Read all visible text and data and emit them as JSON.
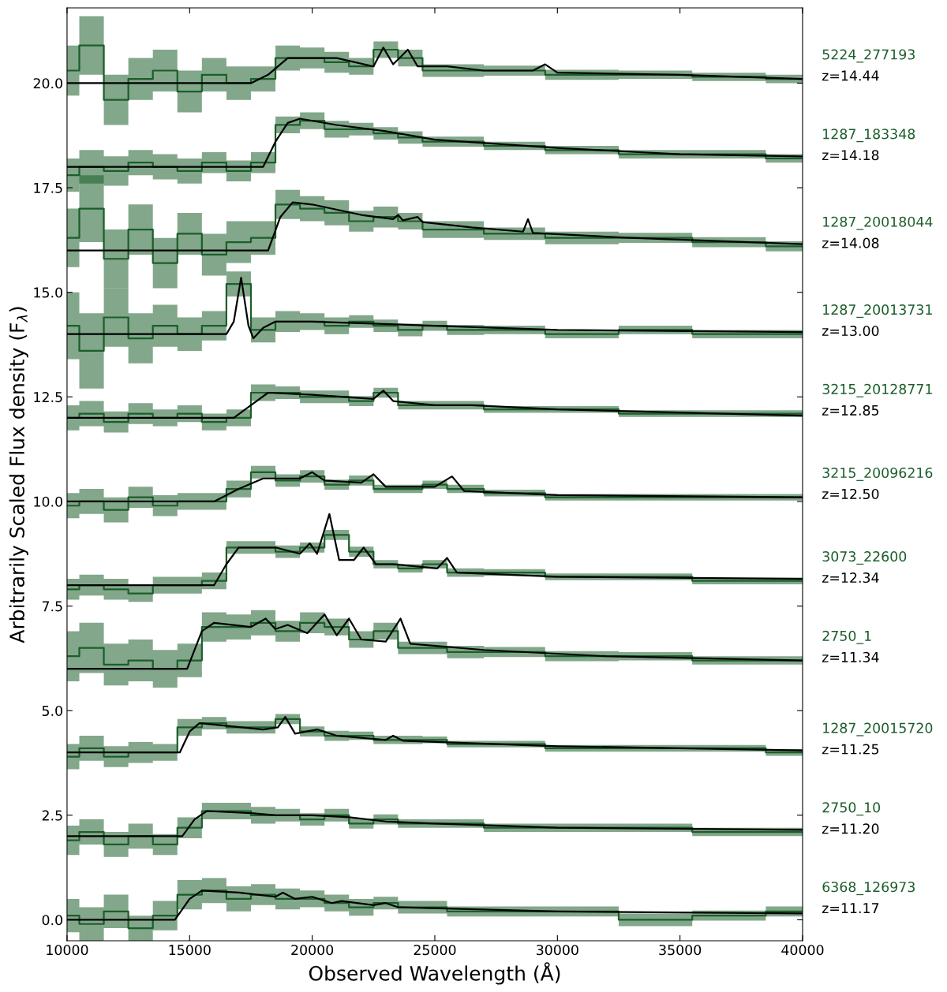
{
  "chart_data": {
    "type": "line",
    "xlabel": "Observed Wavelength (Å)",
    "ylabel": "Arbitrarily Scaled Flux density (F$_{λ}$)",
    "xlim": [
      10000,
      40000
    ],
    "xticks": [
      10000,
      15000,
      20000,
      25000,
      30000,
      35000,
      40000
    ],
    "ylim": [
      -0.5,
      21.8
    ],
    "yticks": [
      {
        "value": 0,
        "label": "0.0"
      },
      {
        "value": 2.5,
        "label": "2.5"
      },
      {
        "value": 5,
        "label": "5.0"
      },
      {
        "value": 7.5,
        "label": "7.5"
      },
      {
        "value": 10,
        "label": "10.0"
      },
      {
        "value": 12.5,
        "label": "12.5"
      },
      {
        "value": 15,
        "label": "15.0"
      },
      {
        "value": 17.5,
        "label": "17.5"
      },
      {
        "value": 20,
        "label": "20.0"
      }
    ],
    "x": [
      10000,
      11000,
      12000,
      13000,
      14000,
      15000,
      16000,
      17000,
      18000,
      19000,
      20000,
      21000,
      22000,
      23000,
      24000,
      25000,
      26000,
      28000,
      31000,
      34000,
      37000,
      40000
    ],
    "annotations": [
      "z=14.44",
      "z=14.18",
      "z=14.08",
      "z=13.00",
      "z=12.85",
      "z=12.50",
      "z=12.34",
      "z=11.34",
      "z=11.25",
      "z=11.20",
      "z=11.17"
    ],
    "series": [
      {
        "type": "step",
        "name": "5224_277193",
        "color": "#1b5e2a",
        "values": [
          20.3,
          20.9,
          19.6,
          20.1,
          20.3,
          19.8,
          20.2,
          20.0,
          20.1,
          20.6,
          20.6,
          20.5,
          20.4,
          20.8,
          20.6,
          20.3,
          20.3,
          20.3,
          20.2,
          20.2,
          20.15,
          20.1
        ],
        "lower": [
          19.7,
          20.2,
          19.0,
          19.6,
          19.8,
          19.3,
          19.8,
          19.6,
          19.8,
          20.3,
          20.35,
          20.25,
          20.2,
          20.6,
          20.4,
          20.15,
          20.15,
          20.18,
          20.08,
          20.1,
          20.05,
          20.0
        ],
        "upper": [
          20.9,
          21.6,
          20.2,
          20.6,
          20.8,
          20.3,
          20.6,
          20.4,
          20.4,
          20.9,
          20.85,
          20.75,
          20.6,
          21.0,
          20.8,
          20.45,
          20.45,
          20.42,
          20.32,
          20.3,
          20.25,
          20.2
        ]
      },
      {
        "type": "line",
        "color": "#000000",
        "x": [
          10000,
          17500,
          18200,
          19000,
          21000,
          22500,
          22900,
          23300,
          23900,
          24300,
          25500,
          27000,
          29000,
          29500,
          30000,
          35000,
          40000
        ],
        "values": [
          20,
          20,
          20.2,
          20.6,
          20.6,
          20.4,
          20.85,
          20.45,
          20.8,
          20.4,
          20.4,
          20.3,
          20.3,
          20.45,
          20.25,
          20.2,
          20.1
        ]
      },
      {
        "type": "step",
        "name": "1287_183348",
        "color": "#1b5e2a",
        "values": [
          17.8,
          18.0,
          17.9,
          18.1,
          18.0,
          17.9,
          18.1,
          17.9,
          18.1,
          19.0,
          19.1,
          18.9,
          18.9,
          18.8,
          18.7,
          18.6,
          18.6,
          18.5,
          18.4,
          18.3,
          18.3,
          18.2
        ],
        "lower": [
          17.4,
          17.6,
          17.55,
          17.8,
          17.7,
          17.6,
          17.85,
          17.65,
          17.85,
          18.8,
          18.9,
          18.7,
          18.75,
          18.65,
          18.55,
          18.48,
          18.48,
          18.4,
          18.3,
          18.2,
          18.2,
          18.1
        ],
        "upper": [
          18.2,
          18.4,
          18.25,
          18.4,
          18.3,
          18.2,
          18.35,
          18.15,
          18.35,
          19.2,
          19.3,
          19.1,
          19.05,
          18.95,
          18.85,
          18.72,
          18.72,
          18.6,
          18.5,
          18.4,
          18.4,
          18.3
        ]
      },
      {
        "type": "line",
        "color": "#000000",
        "x": [
          10000,
          18000,
          18500,
          19000,
          19500,
          21000,
          23000,
          25000,
          30000,
          35000,
          40000
        ],
        "values": [
          18,
          18,
          18.6,
          19.05,
          19.15,
          19.0,
          18.85,
          18.65,
          18.45,
          18.3,
          18.25
        ]
      },
      {
        "type": "step",
        "name": "1287_20018044",
        "color": "#1b5e2a",
        "values": [
          16.3,
          17.0,
          15.8,
          16.5,
          15.7,
          16.4,
          15.9,
          16.2,
          16.3,
          17.1,
          17.0,
          16.9,
          16.7,
          16.8,
          16.7,
          16.5,
          16.5,
          16.4,
          16.3,
          16.3,
          16.2,
          16.1
        ],
        "lower": [
          15.6,
          16.2,
          15.1,
          15.9,
          15.1,
          15.9,
          15.4,
          15.7,
          15.9,
          16.75,
          16.7,
          16.6,
          16.45,
          16.55,
          16.5,
          16.3,
          16.3,
          16.25,
          16.15,
          16.18,
          16.08,
          15.98
        ],
        "upper": [
          17.0,
          17.8,
          16.5,
          17.1,
          16.3,
          16.9,
          16.4,
          16.7,
          16.7,
          17.45,
          17.3,
          17.2,
          16.95,
          17.05,
          16.9,
          16.7,
          16.7,
          16.55,
          16.45,
          16.42,
          16.32,
          16.22
        ]
      },
      {
        "type": "line",
        "color": "#000000",
        "x": [
          10000,
          18200,
          18700,
          19200,
          20000,
          22000,
          23300,
          23500,
          23700,
          24300,
          24500,
          26500,
          28600,
          28800,
          29000,
          33000,
          40000
        ],
        "values": [
          16,
          16,
          16.8,
          17.15,
          17.1,
          16.85,
          16.75,
          16.85,
          16.72,
          16.8,
          16.68,
          16.55,
          16.45,
          16.75,
          16.42,
          16.3,
          16.15
        ]
      },
      {
        "type": "step",
        "name": "1287_20013731",
        "color": "#1b5e2a",
        "values": [
          14.2,
          13.6,
          14.4,
          13.9,
          14.2,
          14.0,
          14.2,
          15.2,
          14.1,
          14.3,
          14.3,
          14.2,
          14.3,
          14.2,
          14.1,
          14.2,
          14.1,
          14.1,
          14.0,
          14.1,
          14.0,
          14.0
        ],
        "lower": [
          13.4,
          12.7,
          13.7,
          13.3,
          13.7,
          13.6,
          13.85,
          14.9,
          13.8,
          14.05,
          14.1,
          14.0,
          14.15,
          14.05,
          13.95,
          14.08,
          13.98,
          14.0,
          13.9,
          14.0,
          13.9,
          13.9
        ],
        "upper": [
          15.0,
          14.5,
          15.1,
          14.5,
          14.7,
          14.4,
          14.55,
          15.5,
          14.4,
          14.55,
          14.5,
          14.4,
          14.45,
          14.35,
          14.25,
          14.32,
          14.22,
          14.2,
          14.1,
          14.2,
          14.1,
          14.1
        ]
      },
      {
        "type": "line",
        "color": "#000000",
        "x": [
          10000,
          16500,
          16800,
          17100,
          17400,
          17600,
          18000,
          18500,
          20000,
          25000,
          30000,
          40000
        ],
        "values": [
          14,
          14,
          14.3,
          15.35,
          14.2,
          13.9,
          14.15,
          14.3,
          14.3,
          14.2,
          14.1,
          14.05
        ]
      },
      {
        "type": "step",
        "name": "3215_20128771",
        "color": "#1b5e2a",
        "values": [
          12.0,
          12.1,
          11.9,
          12.1,
          12.0,
          12.1,
          11.9,
          12.0,
          12.6,
          12.6,
          12.5,
          12.5,
          12.4,
          12.6,
          12.3,
          12.3,
          12.3,
          12.2,
          12.2,
          12.1,
          12.1,
          12.1
        ],
        "lower": [
          11.7,
          11.8,
          11.65,
          11.85,
          11.8,
          11.9,
          11.7,
          11.8,
          12.4,
          12.45,
          12.35,
          12.35,
          12.28,
          12.48,
          12.2,
          12.2,
          12.2,
          12.12,
          12.12,
          12.02,
          12.02,
          12.02
        ],
        "upper": [
          12.3,
          12.4,
          12.15,
          12.35,
          12.2,
          12.3,
          12.1,
          12.2,
          12.8,
          12.75,
          12.65,
          12.65,
          12.52,
          12.72,
          12.4,
          12.4,
          12.4,
          12.28,
          12.28,
          12.18,
          12.18,
          12.18
        ]
      },
      {
        "type": "line",
        "color": "#000000",
        "x": [
          10000,
          16800,
          17500,
          18200,
          20000,
          22500,
          22900,
          23300,
          25000,
          26500,
          30000,
          40000
        ],
        "values": [
          12,
          12,
          12.3,
          12.6,
          12.55,
          12.45,
          12.65,
          12.4,
          12.3,
          12.3,
          12.2,
          12.05
        ]
      },
      {
        "type": "step",
        "name": "3215_20096216",
        "color": "#1b5e2a",
        "values": [
          9.9,
          10.0,
          9.8,
          10.1,
          9.9,
          10.0,
          10.0,
          10.3,
          10.7,
          10.5,
          10.6,
          10.4,
          10.5,
          10.3,
          10.3,
          10.4,
          10.3,
          10.2,
          10.1,
          10.1,
          10.1,
          10.1
        ],
        "lower": [
          9.6,
          9.7,
          9.5,
          9.85,
          9.65,
          9.8,
          9.8,
          10.1,
          10.55,
          10.35,
          10.45,
          10.28,
          10.38,
          10.2,
          10.2,
          10.3,
          10.2,
          10.12,
          10.02,
          10.02,
          10.02,
          10.02
        ],
        "upper": [
          10.2,
          10.3,
          10.1,
          10.35,
          10.15,
          10.2,
          10.2,
          10.5,
          10.85,
          10.65,
          10.75,
          10.52,
          10.62,
          10.4,
          10.4,
          10.5,
          10.4,
          10.28,
          10.18,
          10.18,
          10.18,
          10.18
        ]
      },
      {
        "type": "line",
        "color": "#000000",
        "x": [
          10000,
          16000,
          17000,
          18000,
          19500,
          20000,
          20500,
          22000,
          22500,
          23000,
          25000,
          25700,
          26200,
          30000,
          40000
        ],
        "values": [
          10,
          10,
          10.3,
          10.55,
          10.55,
          10.7,
          10.5,
          10.45,
          10.65,
          10.35,
          10.35,
          10.6,
          10.25,
          10.15,
          10.1
        ]
      },
      {
        "type": "step",
        "name": "3073_22600",
        "color": "#1b5e2a",
        "values": [
          7.9,
          8.0,
          7.9,
          7.8,
          8.0,
          8.0,
          8.1,
          8.9,
          8.9,
          8.8,
          8.9,
          9.2,
          8.8,
          8.5,
          8.4,
          8.5,
          8.3,
          8.3,
          8.2,
          8.2,
          8.1,
          8.1
        ],
        "lower": [
          7.65,
          7.75,
          7.65,
          7.6,
          7.8,
          7.8,
          7.9,
          8.75,
          8.75,
          8.65,
          8.78,
          9.08,
          8.68,
          8.4,
          8.3,
          8.4,
          8.2,
          8.22,
          8.12,
          8.12,
          8.02,
          8.02
        ],
        "upper": [
          8.15,
          8.25,
          8.15,
          8.0,
          8.2,
          8.2,
          8.3,
          9.05,
          9.05,
          8.95,
          9.02,
          9.32,
          8.92,
          8.6,
          8.5,
          8.6,
          8.4,
          8.38,
          8.28,
          8.28,
          8.18,
          8.18
        ]
      },
      {
        "type": "line",
        "color": "#000000",
        "x": [
          10000,
          16000,
          16500,
          17000,
          18500,
          19500,
          19900,
          20200,
          20700,
          21100,
          21700,
          22100,
          22600,
          23300,
          25100,
          25500,
          25900,
          30000,
          40000
        ],
        "values": [
          8,
          8,
          8.5,
          8.9,
          8.9,
          8.75,
          9.0,
          8.75,
          9.7,
          8.6,
          8.6,
          8.9,
          8.5,
          8.5,
          8.4,
          8.65,
          8.3,
          8.2,
          8.15
        ]
      },
      {
        "type": "step",
        "name": "2750_1",
        "color": "#1b5e2a",
        "values": [
          6.3,
          6.5,
          6.1,
          6.2,
          6.0,
          6.2,
          7.0,
          7.0,
          7.1,
          6.9,
          7.1,
          7.0,
          6.7,
          6.9,
          6.5,
          6.5,
          6.4,
          6.4,
          6.3,
          6.3,
          6.2,
          6.2
        ],
        "lower": [
          5.7,
          5.9,
          5.6,
          5.7,
          5.55,
          5.8,
          6.65,
          6.7,
          6.8,
          6.65,
          6.85,
          6.8,
          6.5,
          6.7,
          6.35,
          6.35,
          6.25,
          6.28,
          6.18,
          6.2,
          6.1,
          6.1
        ],
        "upper": [
          6.9,
          7.1,
          6.6,
          6.7,
          6.45,
          6.6,
          7.35,
          7.3,
          7.4,
          7.15,
          7.35,
          7.2,
          6.9,
          7.1,
          6.65,
          6.65,
          6.55,
          6.52,
          6.42,
          6.4,
          6.3,
          6.3
        ]
      },
      {
        "type": "line",
        "color": "#000000",
        "x": [
          10000,
          14900,
          15500,
          16000,
          17500,
          18100,
          18500,
          19000,
          19800,
          20500,
          21000,
          21500,
          22000,
          23000,
          23600,
          24000,
          27000,
          32000,
          40000
        ],
        "values": [
          6,
          6,
          6.9,
          7.1,
          7.0,
          7.2,
          6.95,
          7.05,
          6.85,
          7.3,
          6.8,
          7.2,
          6.7,
          6.65,
          7.2,
          6.6,
          6.45,
          6.3,
          6.2
        ]
      },
      {
        "type": "step",
        "name": "1287_20015720",
        "color": "#1b5e2a",
        "values": [
          3.9,
          4.1,
          3.9,
          4.0,
          4.0,
          4.6,
          4.7,
          4.6,
          4.6,
          4.8,
          4.5,
          4.4,
          4.4,
          4.3,
          4.3,
          4.3,
          4.2,
          4.2,
          4.1,
          4.1,
          4.1,
          4.0
        ],
        "lower": [
          3.6,
          3.8,
          3.65,
          3.75,
          3.8,
          4.4,
          4.55,
          4.45,
          4.45,
          4.68,
          4.38,
          4.28,
          4.3,
          4.2,
          4.2,
          4.22,
          4.12,
          4.12,
          4.02,
          4.02,
          4.02,
          3.92
        ],
        "upper": [
          4.2,
          4.4,
          4.15,
          4.25,
          4.2,
          4.8,
          4.85,
          4.75,
          4.75,
          4.92,
          4.62,
          4.52,
          4.5,
          4.4,
          4.4,
          4.38,
          4.28,
          4.28,
          4.18,
          4.18,
          4.18,
          4.08
        ]
      },
      {
        "type": "line",
        "color": "#000000",
        "x": [
          10000,
          14600,
          15000,
          15400,
          18000,
          18600,
          18900,
          19300,
          20200,
          21000,
          23000,
          23300,
          23700,
          30000,
          40000
        ],
        "values": [
          4,
          4,
          4.5,
          4.7,
          4.55,
          4.6,
          4.85,
          4.45,
          4.55,
          4.4,
          4.3,
          4.4,
          4.28,
          4.15,
          4.05
        ]
      },
      {
        "type": "step",
        "name": "2750_10",
        "color": "#1b5e2a",
        "values": [
          1.9,
          2.1,
          1.8,
          2.0,
          1.8,
          2.2,
          2.6,
          2.6,
          2.5,
          2.5,
          2.4,
          2.5,
          2.3,
          2.4,
          2.3,
          2.3,
          2.3,
          2.2,
          2.2,
          2.2,
          2.1,
          2.1
        ],
        "lower": [
          1.55,
          1.8,
          1.5,
          1.7,
          1.55,
          1.95,
          2.4,
          2.4,
          2.3,
          2.35,
          2.25,
          2.35,
          2.18,
          2.28,
          2.2,
          2.2,
          2.2,
          2.1,
          2.1,
          2.1,
          2.0,
          2.0
        ],
        "upper": [
          2.25,
          2.4,
          2.1,
          2.3,
          2.05,
          2.45,
          2.8,
          2.8,
          2.7,
          2.65,
          2.55,
          2.65,
          2.42,
          2.52,
          2.4,
          2.4,
          2.4,
          2.3,
          2.3,
          2.3,
          2.2,
          2.2
        ]
      },
      {
        "type": "line",
        "color": "#000000",
        "x": [
          10000,
          14700,
          15200,
          15700,
          17500,
          18500,
          20000,
          21500,
          23000,
          25000,
          30000,
          40000
        ],
        "values": [
          2,
          2,
          2.4,
          2.6,
          2.55,
          2.5,
          2.5,
          2.45,
          2.35,
          2.3,
          2.2,
          2.15
        ]
      },
      {
        "type": "step",
        "name": "6368_126973",
        "color": "#1b5e2a",
        "values": [
          0.1,
          -0.1,
          0.2,
          -0.2,
          0.1,
          0.6,
          0.7,
          0.5,
          0.6,
          0.5,
          0.5,
          0.4,
          0.3,
          0.4,
          0.3,
          0.3,
          0.2,
          0.2,
          0.2,
          0.0,
          0.1,
          0.2
        ],
        "lower": [
          -0.3,
          -0.5,
          -0.2,
          -0.5,
          -0.25,
          0.25,
          0.4,
          0.2,
          0.35,
          0.25,
          0.3,
          0.2,
          0.1,
          0.25,
          0.15,
          0.15,
          0.08,
          0.08,
          0.08,
          -0.15,
          -0.02,
          0.08
        ],
        "upper": [
          0.5,
          0.3,
          0.6,
          0.1,
          0.45,
          0.95,
          1.0,
          0.8,
          0.85,
          0.75,
          0.7,
          0.6,
          0.5,
          0.55,
          0.45,
          0.45,
          0.32,
          0.32,
          0.32,
          0.15,
          0.22,
          0.32
        ]
      },
      {
        "type": "line",
        "color": "#000000",
        "x": [
          10000,
          14400,
          15000,
          15500,
          17000,
          18500,
          18800,
          19300,
          20000,
          20800,
          21200,
          22500,
          23000,
          23500,
          30000,
          40000
        ],
        "values": [
          0,
          0,
          0.5,
          0.7,
          0.65,
          0.55,
          0.65,
          0.5,
          0.55,
          0.4,
          0.45,
          0.35,
          0.4,
          0.3,
          0.2,
          0.15
        ]
      }
    ]
  }
}
